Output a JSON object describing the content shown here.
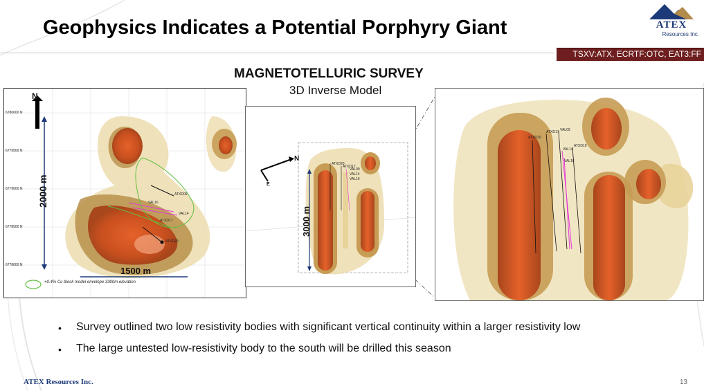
{
  "slide": {
    "title": "Geophysics Indicates a Potential Porphyry Giant",
    "ticker": "TSXV:ATX, ECRTF:OTC, EAT3:FF",
    "logo": {
      "name": "ATEX",
      "sub": "Resources Inc."
    },
    "survey_title": "MAGNETOTELLURIC SURVEY",
    "survey_subtitle": "3D Inverse Model",
    "footer_company": "ATEX Resources Inc.",
    "page_number": "13"
  },
  "plan_view": {
    "north_label": "N",
    "scale_vertical": "2000 m",
    "scale_horizontal": "1500 m",
    "legend": "+0.4% Cu block model envelope 3300m elevation",
    "grid_labels_left": [
      "6780000 N",
      "6779500 N",
      "6779000 N",
      "6778500 N",
      "6778000 N"
    ],
    "drill_labels": [
      "ATXD09",
      "VAL16",
      "VAL14",
      "ATXD17",
      "ATXD20"
    ]
  },
  "section_view": {
    "north_label": "N",
    "east_label": "E",
    "scale_vertical": "3000 m",
    "drill_labels": [
      "ATXD20",
      "ATXD17",
      "VAL09",
      "VAL14",
      "VAL16"
    ]
  },
  "zoom_view": {
    "drill_labels": [
      "ATXD20",
      "ATXD17",
      "VAL09",
      "VAL14",
      "ATXD19",
      "VAL16"
    ]
  },
  "bullets": [
    "Survey outlined two low resistivity bodies with significant vertical continuity within a larger resistivity low",
    "The large untested low-resistivity body to the south will be drilled this season"
  ],
  "colors": {
    "accent_bar": "#6e1e1e",
    "logo_blue": "#1d3a78",
    "body_orange": "#d9541e",
    "envelope_tan": "#e8d39a"
  }
}
